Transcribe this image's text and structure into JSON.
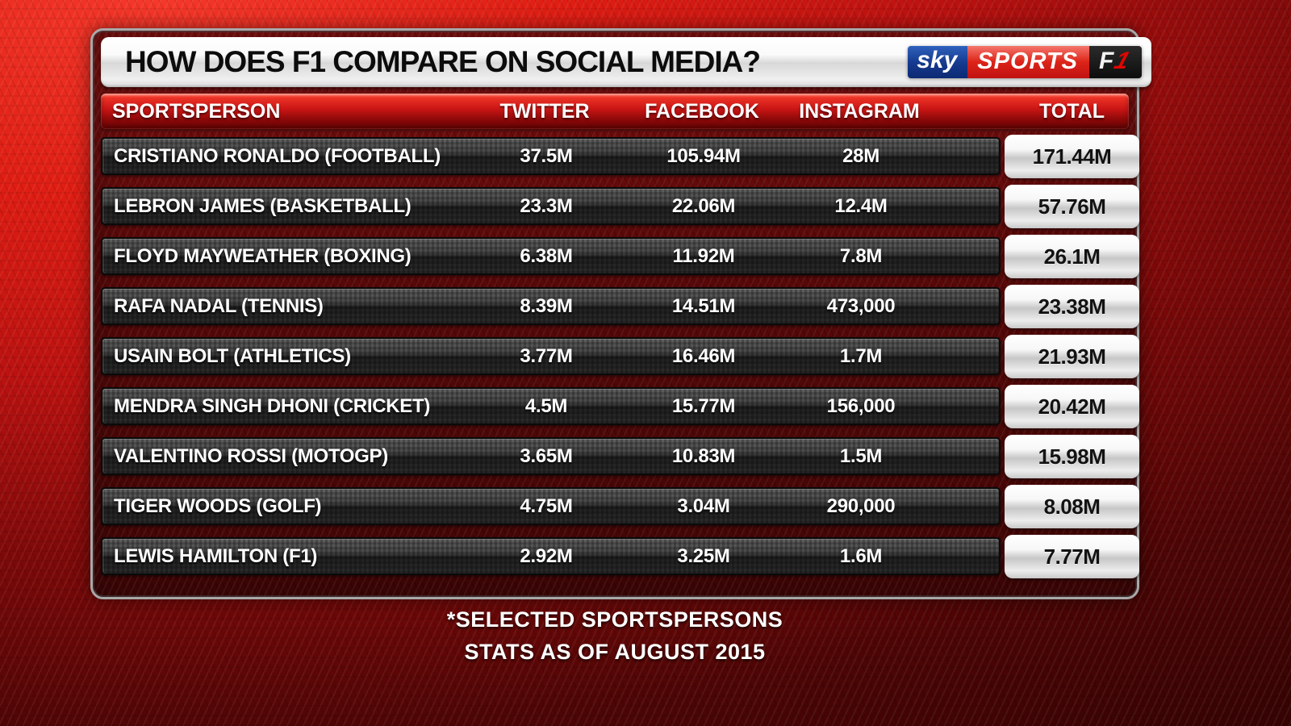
{
  "title": "HOW DOES F1 COMPARE ON SOCIAL MEDIA?",
  "brand": {
    "sky": "sky",
    "sports": "SPORTS",
    "f1_f": "F",
    "f1_one": "1"
  },
  "columns": {
    "sportsperson": "SPORTSPERSON",
    "twitter": "TWITTER",
    "facebook": "FACEBOOK",
    "instagram": "INSTAGRAM",
    "total": "TOTAL"
  },
  "rows": [
    {
      "name": "CRISTIANO RONALDO (FOOTBALL)",
      "twitter": "37.5M",
      "facebook": "105.94M",
      "instagram": "28M",
      "total": "171.44M"
    },
    {
      "name": "LEBRON JAMES (BASKETBALL)",
      "twitter": "23.3M",
      "facebook": "22.06M",
      "instagram": "12.4M",
      "total": "57.76M"
    },
    {
      "name": "FLOYD MAYWEATHER (BOXING)",
      "twitter": "6.38M",
      "facebook": "11.92M",
      "instagram": "7.8M",
      "total": "26.1M"
    },
    {
      "name": "RAFA NADAL (TENNIS)",
      "twitter": "8.39M",
      "facebook": "14.51M",
      "instagram": "473,000",
      "total": "23.38M"
    },
    {
      "name": "USAIN BOLT (ATHLETICS)",
      "twitter": "3.77M",
      "facebook": "16.46M",
      "instagram": "1.7M",
      "total": "21.93M"
    },
    {
      "name": "MENDRA SINGH DHONI (CRICKET)",
      "twitter": "4.5M",
      "facebook": "15.77M",
      "instagram": "156,000",
      "total": "20.42M"
    },
    {
      "name": "VALENTINO ROSSI (MOTOGP)",
      "twitter": "3.65M",
      "facebook": "10.83M",
      "instagram": "1.5M",
      "total": "15.98M"
    },
    {
      "name": "TIGER WOODS (GOLF)",
      "twitter": "4.75M",
      "facebook": "3.04M",
      "instagram": "290,000",
      "total": "8.08M"
    },
    {
      "name": "LEWIS HAMILTON (F1)",
      "twitter": "2.92M",
      "facebook": "3.25M",
      "instagram": "1.6M",
      "total": "7.77M"
    }
  ],
  "footnotes": {
    "line1": "*SELECTED SPORTSPERSONS",
    "line2": "STATS AS OF AUGUST 2015"
  },
  "colors": {
    "background_red": "#df1d13",
    "panel_dark_red": "#5c0909",
    "header_red_top": "#ec3226",
    "header_red_bottom": "#6d0505",
    "row_carbon_gray": "#2c2c2c",
    "total_pill_white": "#f0f0f0",
    "sky_logo_blue": "#14388c",
    "sports_logo_red": "#dc2318",
    "f1_logo_red": "#e10600",
    "text_white": "#ffffff",
    "title_text_black": "#0c0c0c"
  },
  "chart_data": {
    "type": "table",
    "title": "HOW DOES F1 COMPARE ON SOCIAL MEDIA?",
    "columns": [
      "SPORTSPERSON",
      "TWITTER",
      "FACEBOOK",
      "INSTAGRAM",
      "TOTAL"
    ],
    "rows": [
      [
        "CRISTIANO RONALDO (FOOTBALL)",
        "37.5M",
        "105.94M",
        "28M",
        "171.44M"
      ],
      [
        "LEBRON JAMES (BASKETBALL)",
        "23.3M",
        "22.06M",
        "12.4M",
        "57.76M"
      ],
      [
        "FLOYD MAYWEATHER (BOXING)",
        "6.38M",
        "11.92M",
        "7.8M",
        "26.1M"
      ],
      [
        "RAFA NADAL (TENNIS)",
        "8.39M",
        "14.51M",
        "473,000",
        "23.38M"
      ],
      [
        "USAIN BOLT (ATHLETICS)",
        "3.77M",
        "16.46M",
        "1.7M",
        "21.93M"
      ],
      [
        "MENDRA SINGH DHONI (CRICKET)",
        "4.5M",
        "15.77M",
        "156,000",
        "20.42M"
      ],
      [
        "VALENTINO ROSSI (MOTOGP)",
        "3.65M",
        "10.83M",
        "1.5M",
        "15.98M"
      ],
      [
        "TIGER WOODS (GOLF)",
        "4.75M",
        "3.04M",
        "290,000",
        "8.08M"
      ],
      [
        "LEWIS HAMILTON (F1)",
        "2.92M",
        "3.25M",
        "1.6M",
        "7.77M"
      ]
    ],
    "values_millions": {
      "twitter": [
        37.5,
        23.3,
        6.38,
        8.39,
        3.77,
        4.5,
        3.65,
        4.75,
        2.92
      ],
      "facebook": [
        105.94,
        22.06,
        11.92,
        14.51,
        16.46,
        15.77,
        10.83,
        3.04,
        3.25
      ],
      "instagram": [
        28,
        12.4,
        7.8,
        0.473,
        1.7,
        0.156,
        1.5,
        0.29,
        1.6
      ],
      "total": [
        171.44,
        57.76,
        26.1,
        23.38,
        21.93,
        20.42,
        15.98,
        8.08,
        7.77
      ]
    },
    "annotations": [
      "*SELECTED SPORTSPERSONS",
      "STATS AS OF AUGUST 2015"
    ],
    "source_branding": "Sky Sports F1"
  }
}
